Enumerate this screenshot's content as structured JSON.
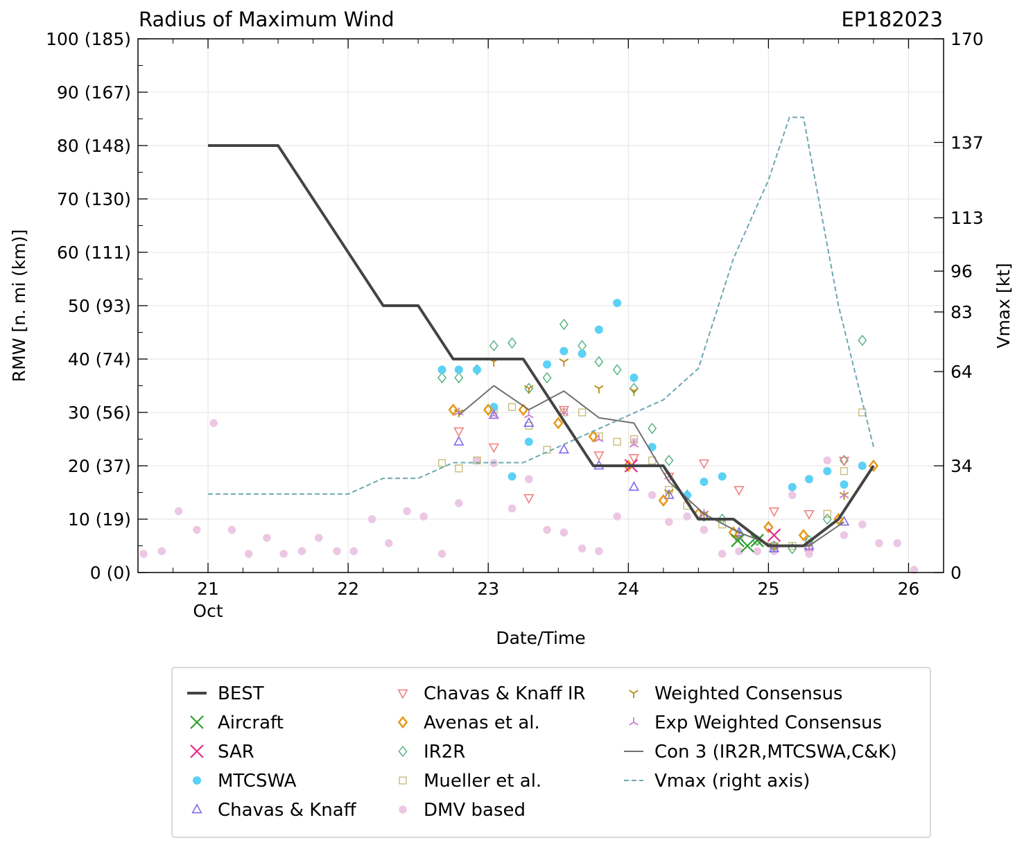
{
  "chart_data": {
    "type": "line",
    "title": "Radius of Maximum Wind",
    "storm_id": "EP182023",
    "xlabel": "Date/Time",
    "ylabel": "RMW [n. mi (km)]",
    "y2label": "Vmax [kt]",
    "xlim": [
      20.5,
      26.25
    ],
    "ylim": [
      0,
      100
    ],
    "y2lim": [
      0,
      170
    ],
    "grid": true,
    "legend_position": "bottom",
    "x_ticks": [
      {
        "value": 21,
        "label": "21",
        "sublabel": "Oct"
      },
      {
        "value": 22,
        "label": "22",
        "sublabel": ""
      },
      {
        "value": 23,
        "label": "23",
        "sublabel": ""
      },
      {
        "value": 24,
        "label": "24",
        "sublabel": ""
      },
      {
        "value": 25,
        "label": "25",
        "sublabel": ""
      },
      {
        "value": 26,
        "label": "26",
        "sublabel": ""
      }
    ],
    "y_ticks": [
      {
        "value": 0,
        "label": "0 (0)"
      },
      {
        "value": 10,
        "label": "10 (19)"
      },
      {
        "value": 20,
        "label": "20 (37)"
      },
      {
        "value": 30,
        "label": "30 (56)"
      },
      {
        "value": 40,
        "label": "40 (74)"
      },
      {
        "value": 50,
        "label": "50 (93)"
      },
      {
        "value": 60,
        "label": "60 (111)"
      },
      {
        "value": 70,
        "label": "70 (130)"
      },
      {
        "value": 80,
        "label": "80 (148)"
      },
      {
        "value": 90,
        "label": "90 (167)"
      },
      {
        "value": 100,
        "label": "100 (185)"
      }
    ],
    "y2_ticks": [
      {
        "value": 0,
        "label": "0"
      },
      {
        "value": 34,
        "label": "34"
      },
      {
        "value": 64,
        "label": "64"
      },
      {
        "value": 83,
        "label": "83"
      },
      {
        "value": 96,
        "label": "96"
      },
      {
        "value": 113,
        "label": "113"
      },
      {
        "value": 137,
        "label": "137"
      },
      {
        "value": 170,
        "label": "170"
      }
    ],
    "series": [
      {
        "name": "BEST",
        "kind": "line",
        "color": "#444444",
        "points": [
          [
            21.0,
            80
          ],
          [
            21.5,
            80
          ],
          [
            22.25,
            50
          ],
          [
            22.5,
            50
          ],
          [
            22.75,
            40
          ],
          [
            23.25,
            40
          ],
          [
            23.75,
            20
          ],
          [
            24.25,
            20
          ],
          [
            24.5,
            10
          ],
          [
            24.75,
            10
          ],
          [
            25.0,
            5
          ],
          [
            25.25,
            5
          ],
          [
            25.5,
            10
          ],
          [
            25.75,
            20
          ]
        ]
      },
      {
        "name": "Aircraft",
        "kind": "x",
        "color": "#2ca02c",
        "points": [
          [
            24.78,
            6
          ],
          [
            24.85,
            5
          ],
          [
            24.92,
            6
          ]
        ]
      },
      {
        "name": "SAR",
        "kind": "x",
        "color": "#e7298a",
        "points": [
          [
            24.02,
            20
          ],
          [
            25.04,
            7
          ]
        ]
      },
      {
        "name": "MTCSWA",
        "kind": "dot",
        "color": "#5bd1f5",
        "points": [
          [
            22.67,
            38
          ],
          [
            22.79,
            38
          ],
          [
            22.92,
            38
          ],
          [
            23.04,
            31
          ],
          [
            23.17,
            18
          ],
          [
            23.29,
            24.5
          ],
          [
            23.42,
            39
          ],
          [
            23.54,
            41.5
          ],
          [
            23.67,
            41
          ],
          [
            23.79,
            45.5
          ],
          [
            23.92,
            50.5
          ],
          [
            24.04,
            36.5
          ],
          [
            24.17,
            23.5
          ],
          [
            24.42,
            14.5
          ],
          [
            24.54,
            17
          ],
          [
            24.67,
            18
          ],
          [
            25.17,
            16
          ],
          [
            25.29,
            17.5
          ],
          [
            25.42,
            19
          ],
          [
            25.54,
            16.5
          ],
          [
            25.67,
            20
          ]
        ]
      },
      {
        "name": "Chavas & Knaff",
        "kind": "triangle-up",
        "color": "#7b68ee",
        "points": [
          [
            22.79,
            24.5
          ],
          [
            23.04,
            29.5
          ],
          [
            23.29,
            28
          ],
          [
            23.54,
            23
          ],
          [
            23.79,
            20
          ],
          [
            24.04,
            16
          ],
          [
            24.29,
            14.5
          ],
          [
            24.54,
            10.5
          ],
          [
            24.79,
            7.5
          ],
          [
            25.04,
            4.5
          ],
          [
            25.29,
            5
          ],
          [
            25.54,
            9.5
          ]
        ]
      },
      {
        "name": "Chavas & Knaff IR",
        "kind": "triangle-down",
        "color": "#f08080",
        "points": [
          [
            22.79,
            26.5
          ],
          [
            23.04,
            23.5
          ],
          [
            23.29,
            14
          ],
          [
            23.54,
            30.5
          ],
          [
            23.79,
            22
          ],
          [
            24.04,
            21.5
          ],
          [
            24.29,
            18
          ],
          [
            24.54,
            20.5
          ],
          [
            24.79,
            15.5
          ],
          [
            25.04,
            11.5
          ],
          [
            25.29,
            11
          ],
          [
            25.54,
            21
          ]
        ]
      },
      {
        "name": "Avenas et al.",
        "kind": "diamond",
        "color": "#e69a1a",
        "points": [
          [
            22.75,
            30.5
          ],
          [
            23.0,
            30.5
          ],
          [
            23.25,
            30.5
          ],
          [
            23.5,
            28
          ],
          [
            23.75,
            25.5
          ],
          [
            24.0,
            20
          ],
          [
            24.25,
            13.5
          ],
          [
            24.5,
            11
          ],
          [
            24.75,
            7.5
          ],
          [
            25.0,
            8.5
          ],
          [
            25.25,
            7
          ],
          [
            25.5,
            10
          ],
          [
            25.75,
            20
          ]
        ]
      },
      {
        "name": "IR2R",
        "kind": "diamond-open",
        "color": "#4daf7c",
        "points": [
          [
            22.67,
            36.5
          ],
          [
            22.79,
            36.5
          ],
          [
            22.92,
            38
          ],
          [
            23.04,
            42.5
          ],
          [
            23.17,
            43
          ],
          [
            23.29,
            34.5
          ],
          [
            23.42,
            36.5
          ],
          [
            23.54,
            46.5
          ],
          [
            23.67,
            42.5
          ],
          [
            23.79,
            39.5
          ],
          [
            23.92,
            38
          ],
          [
            24.04,
            34.5
          ],
          [
            24.17,
            27
          ],
          [
            24.29,
            21
          ],
          [
            24.42,
            14.5
          ],
          [
            24.54,
            10.5
          ],
          [
            24.67,
            10
          ],
          [
            24.79,
            7
          ],
          [
            24.92,
            6
          ],
          [
            25.04,
            5
          ],
          [
            25.17,
            4.5
          ],
          [
            25.29,
            6
          ],
          [
            25.42,
            10
          ],
          [
            25.54,
            21
          ],
          [
            25.67,
            43.5
          ]
        ]
      },
      {
        "name": "Mueller et al.",
        "kind": "square",
        "color": "#c8bc7a",
        "points": [
          [
            22.67,
            20.5
          ],
          [
            22.79,
            19.5
          ],
          [
            22.92,
            21
          ],
          [
            23.04,
            30.5
          ],
          [
            23.17,
            31
          ],
          [
            23.29,
            27.5
          ],
          [
            23.42,
            23
          ],
          [
            23.54,
            30
          ],
          [
            23.67,
            30
          ],
          [
            23.79,
            25.5
          ],
          [
            23.92,
            24.5
          ],
          [
            24.04,
            25
          ],
          [
            24.17,
            21
          ],
          [
            24.29,
            15.5
          ],
          [
            24.42,
            12.5
          ],
          [
            24.54,
            10.5
          ],
          [
            24.67,
            9
          ],
          [
            24.79,
            7
          ],
          [
            24.92,
            6
          ],
          [
            25.04,
            5
          ],
          [
            25.17,
            5
          ],
          [
            25.29,
            5.5
          ],
          [
            25.42,
            11
          ],
          [
            25.54,
            19
          ],
          [
            25.67,
            30
          ]
        ]
      },
      {
        "name": "DMV based",
        "kind": "dot-faint",
        "color": "#ecc7e3",
        "points": [
          [
            20.54,
            3.5
          ],
          [
            20.67,
            4
          ],
          [
            20.79,
            11.5
          ],
          [
            20.92,
            8
          ],
          [
            21.04,
            28
          ],
          [
            21.17,
            8
          ],
          [
            21.29,
            3.5
          ],
          [
            21.42,
            6.5
          ],
          [
            21.54,
            3.5
          ],
          [
            21.67,
            4
          ],
          [
            21.79,
            6.5
          ],
          [
            21.92,
            4
          ],
          [
            22.04,
            4
          ],
          [
            22.17,
            10
          ],
          [
            22.29,
            5.5
          ],
          [
            22.42,
            11.5
          ],
          [
            22.54,
            10.5
          ],
          [
            22.67,
            3.5
          ],
          [
            22.79,
            13
          ],
          [
            22.92,
            21
          ],
          [
            23.04,
            20.5
          ],
          [
            23.17,
            12
          ],
          [
            23.29,
            17.5
          ],
          [
            23.42,
            8
          ],
          [
            23.54,
            7.5
          ],
          [
            23.67,
            4.5
          ],
          [
            23.79,
            4
          ],
          [
            23.92,
            10.5
          ],
          [
            24.04,
            24.5
          ],
          [
            24.17,
            14.5
          ],
          [
            24.29,
            9.5
          ],
          [
            24.42,
            10.5
          ],
          [
            24.54,
            8
          ],
          [
            24.67,
            3.5
          ],
          [
            24.79,
            4
          ],
          [
            24.92,
            4
          ],
          [
            25.04,
            4
          ],
          [
            25.17,
            14.5
          ],
          [
            25.29,
            3.5
          ],
          [
            25.42,
            21
          ],
          [
            25.54,
            7
          ],
          [
            25.67,
            9
          ],
          [
            25.79,
            5.5
          ],
          [
            25.92,
            5.5
          ],
          [
            26.04,
            0.5
          ]
        ]
      },
      {
        "name": "Weighted Consensus",
        "kind": "tri-down",
        "color": "#b8860b",
        "points": [
          [
            22.79,
            30
          ],
          [
            23.04,
            39.5
          ],
          [
            23.29,
            34.5
          ],
          [
            23.54,
            39.5
          ],
          [
            23.79,
            34.5
          ],
          [
            24.04,
            34
          ],
          [
            24.29,
            15
          ],
          [
            24.54,
            11
          ],
          [
            24.79,
            6.5
          ],
          [
            25.04,
            5
          ],
          [
            25.29,
            5
          ],
          [
            25.54,
            14.5
          ]
        ]
      },
      {
        "name": "Exp Weighted Consensus",
        "kind": "tri-up",
        "color": "#c77dcf",
        "points": [
          [
            22.79,
            30
          ],
          [
            23.04,
            29.5
          ],
          [
            23.29,
            29.5
          ],
          [
            23.54,
            30
          ],
          [
            23.79,
            25
          ],
          [
            24.04,
            24
          ],
          [
            24.29,
            18
          ],
          [
            24.54,
            11
          ],
          [
            24.79,
            6.5
          ],
          [
            25.04,
            5
          ],
          [
            25.29,
            4.5
          ],
          [
            25.54,
            14.5
          ]
        ]
      },
      {
        "name": "Con 3 (IR2R,MTCSWA,C&K)",
        "kind": "line",
        "color": "#707070",
        "points": [
          [
            22.79,
            29.5
          ],
          [
            23.04,
            35
          ],
          [
            23.29,
            30.5
          ],
          [
            23.54,
            34
          ],
          [
            23.79,
            29
          ],
          [
            24.04,
            28
          ],
          [
            24.29,
            17
          ],
          [
            24.54,
            11
          ],
          [
            24.79,
            7.5
          ],
          [
            25.04,
            5
          ],
          [
            25.29,
            5
          ],
          [
            25.54,
            9.5
          ]
        ]
      },
      {
        "name": "Vmax (right axis)",
        "kind": "dashed",
        "color": "#6aa8b1",
        "axis": "right",
        "points": [
          [
            21.0,
            25
          ],
          [
            22.0,
            25
          ],
          [
            22.25,
            30
          ],
          [
            22.5,
            30
          ],
          [
            22.75,
            35
          ],
          [
            23.25,
            35
          ],
          [
            24.0,
            50
          ],
          [
            24.25,
            55
          ],
          [
            24.5,
            65
          ],
          [
            24.75,
            100
          ],
          [
            25.0,
            125
          ],
          [
            25.15,
            145
          ],
          [
            25.25,
            145
          ],
          [
            25.5,
            85
          ],
          [
            25.75,
            40
          ]
        ]
      }
    ]
  }
}
